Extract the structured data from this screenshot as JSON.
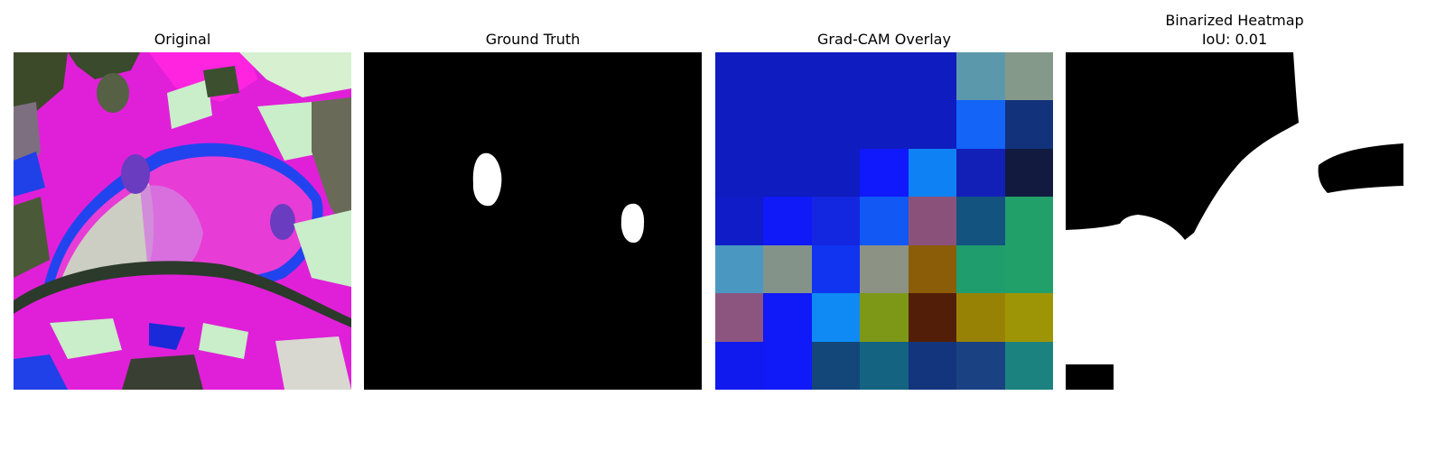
{
  "figure": {
    "panels": [
      {
        "title": "Original"
      },
      {
        "title": "Ground Truth"
      },
      {
        "title": "Grad-CAM Overlay"
      },
      {
        "title_line1": "Binarized Heatmap",
        "title_line2": "IoU: 0.01"
      }
    ]
  },
  "colors": {
    "background": "#ffffff",
    "mask_fg": "#ffffff",
    "mask_bg": "#000000"
  },
  "gradcam": {
    "grid_rows": 7,
    "grid_cols": 7,
    "cells": [
      [
        "#0f1cbf",
        "#0f1cbf",
        "#0f1cbf",
        "#0f1cbf",
        "#0f1cbf",
        "#5b98ac",
        "#85998a"
      ],
      [
        "#0f1cbf",
        "#0f1cbf",
        "#0f1cbf",
        "#0f1cbf",
        "#0f1cbf",
        "#1464f8",
        "#13327c"
      ],
      [
        "#0f1cbf",
        "#0f1cbf",
        "#0f1cbf",
        "#1019fb",
        "#0e82f4",
        "#1320b8",
        "#121a40"
      ],
      [
        "#0f1cc7",
        "#1019f7",
        "#1326e0",
        "#1158f4",
        "#8a527a",
        "#135380",
        "#22a06a"
      ],
      [
        "#4a98c2",
        "#83938a",
        "#1134f0",
        "#8c9284",
        "#8c5d08",
        "#1f9d6c",
        "#22a06a"
      ],
      [
        "#8b5580",
        "#1019f7",
        "#0f8af4",
        "#7d9817",
        "#531e08",
        "#988206",
        "#9d9506"
      ],
      [
        "#1019ee",
        "#1019f7",
        "#13477a",
        "#136381",
        "#13357d",
        "#1a4282",
        "#1b8280"
      ]
    ]
  }
}
